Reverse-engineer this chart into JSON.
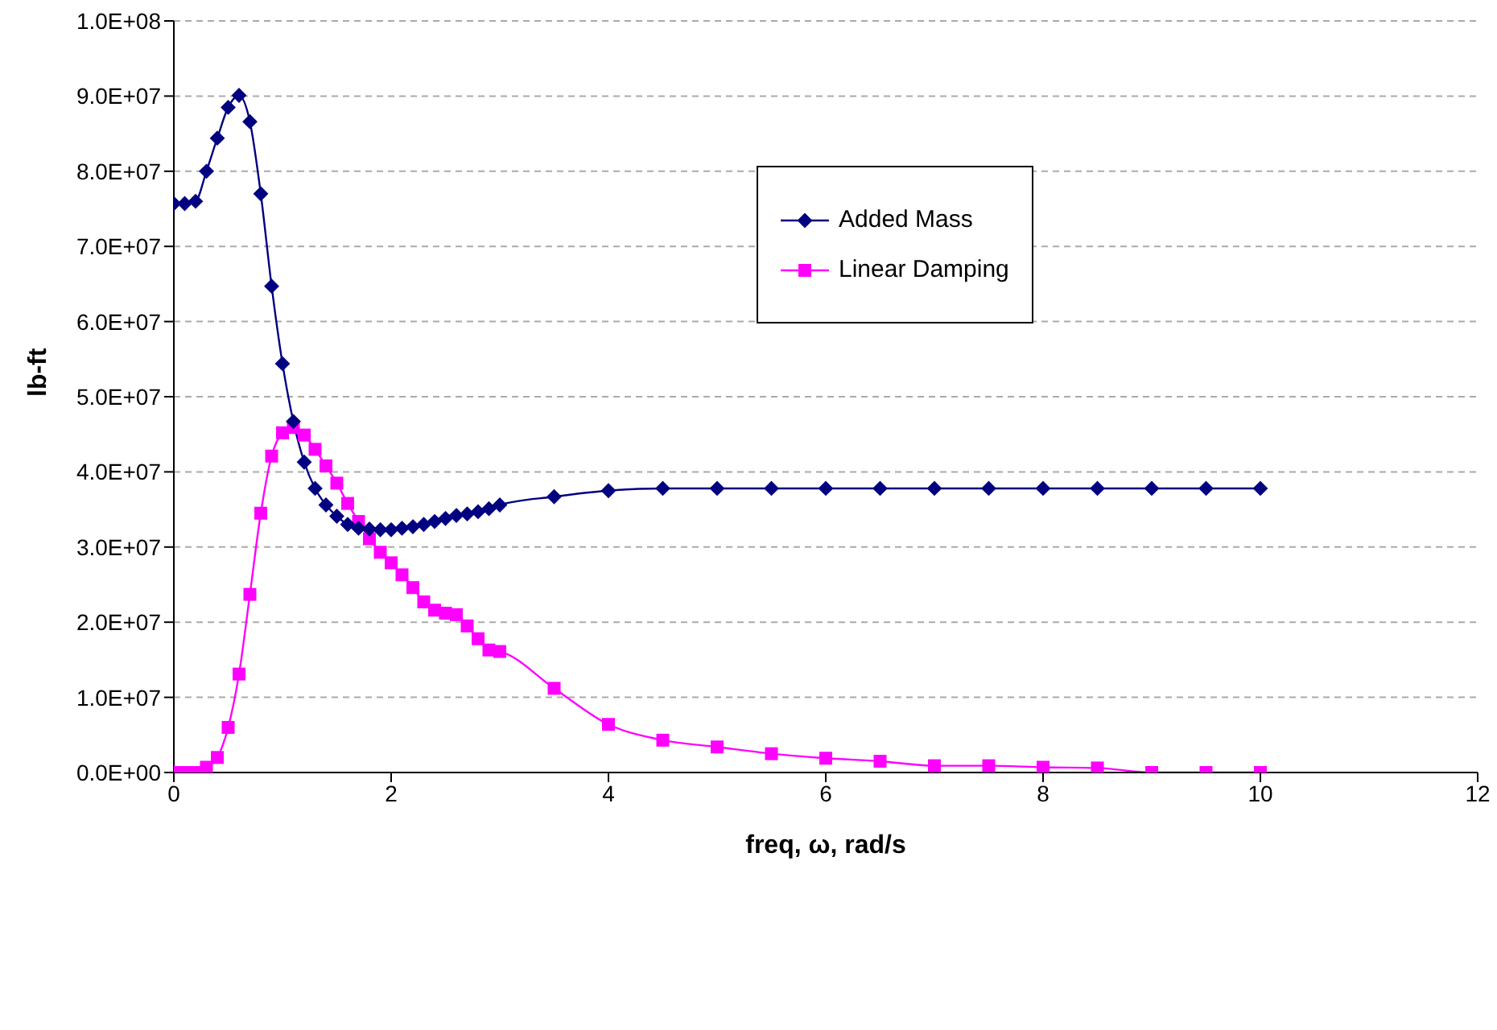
{
  "chart_data": {
    "type": "line",
    "xlabel": "freq, ω, rad/s",
    "ylabel": "lb-ft",
    "x": [
      0,
      0.1,
      0.2,
      0.3,
      0.4,
      0.5,
      0.6,
      0.7,
      0.8,
      0.9,
      1.0,
      1.1,
      1.2,
      1.3,
      1.4,
      1.5,
      1.6,
      1.7,
      1.8,
      1.9,
      2.0,
      2.1,
      2.2,
      2.3,
      2.4,
      2.5,
      2.6,
      2.7,
      2.8,
      2.9,
      3.0,
      3.5,
      4,
      4.5,
      5,
      5.5,
      6,
      6.5,
      7,
      7.5,
      8,
      8.5,
      9,
      9.5,
      10
    ],
    "series": [
      {
        "name": "Added Mass",
        "color": "#000080",
        "marker": "diamond",
        "values": [
          75700000,
          75700000,
          76000000,
          80000000,
          84400000,
          88500000,
          90100000,
          86600000,
          77000000,
          64700000,
          54400000,
          46700000,
          41300000,
          37800000,
          35600000,
          34100000,
          33000000,
          32500000,
          32400000,
          32300000,
          32300000,
          32500000,
          32700000,
          33000000,
          33400000,
          33800000,
          34200000,
          34400000,
          34700000,
          35100000,
          35600000,
          36700000,
          37500000,
          37800000,
          37800000,
          37800000,
          37800000,
          37800000,
          37800000,
          37800000,
          37800000,
          37800000,
          37800000,
          37800000,
          37800000
        ]
      },
      {
        "name": "Linear Damping",
        "color": "#ff00ff",
        "marker": "square",
        "values": [
          0,
          0,
          0,
          700000,
          2000000,
          6000000,
          13100000,
          23700000,
          34500000,
          42100000,
          45200000,
          45900000,
          44900000,
          43000000,
          40800000,
          38500000,
          35800000,
          33400000,
          31100000,
          29300000,
          27900000,
          26300000,
          24600000,
          22700000,
          21600000,
          21200000,
          21000000,
          19500000,
          17800000,
          16300000,
          16100000,
          11200000,
          6400000,
          4300000,
          3400000,
          2500000,
          1900000,
          1500000,
          900000,
          900000,
          700000,
          600000,
          0,
          0,
          0
        ]
      }
    ],
    "xlim": [
      0,
      12
    ],
    "xticks": [
      0,
      2,
      4,
      6,
      8,
      10,
      12
    ],
    "ylim": [
      0,
      100000000
    ],
    "yticks": [
      {
        "value": 0,
        "label": "0.0E+00"
      },
      {
        "value": 10000000,
        "label": "1.0E+07"
      },
      {
        "value": 20000000,
        "label": "2.0E+07"
      },
      {
        "value": 30000000,
        "label": "3.0E+07"
      },
      {
        "value": 40000000,
        "label": "4.0E+07"
      },
      {
        "value": 50000000,
        "label": "5.0E+07"
      },
      {
        "value": 60000000,
        "label": "6.0E+07"
      },
      {
        "value": 70000000,
        "label": "7.0E+07"
      },
      {
        "value": 80000000,
        "label": "8.0E+07"
      },
      {
        "value": 90000000,
        "label": "9.0E+07"
      },
      {
        "value": 100000000,
        "label": "1.0E+08"
      }
    ],
    "grid": "y",
    "legend": "top right",
    "line_style": "solid"
  }
}
